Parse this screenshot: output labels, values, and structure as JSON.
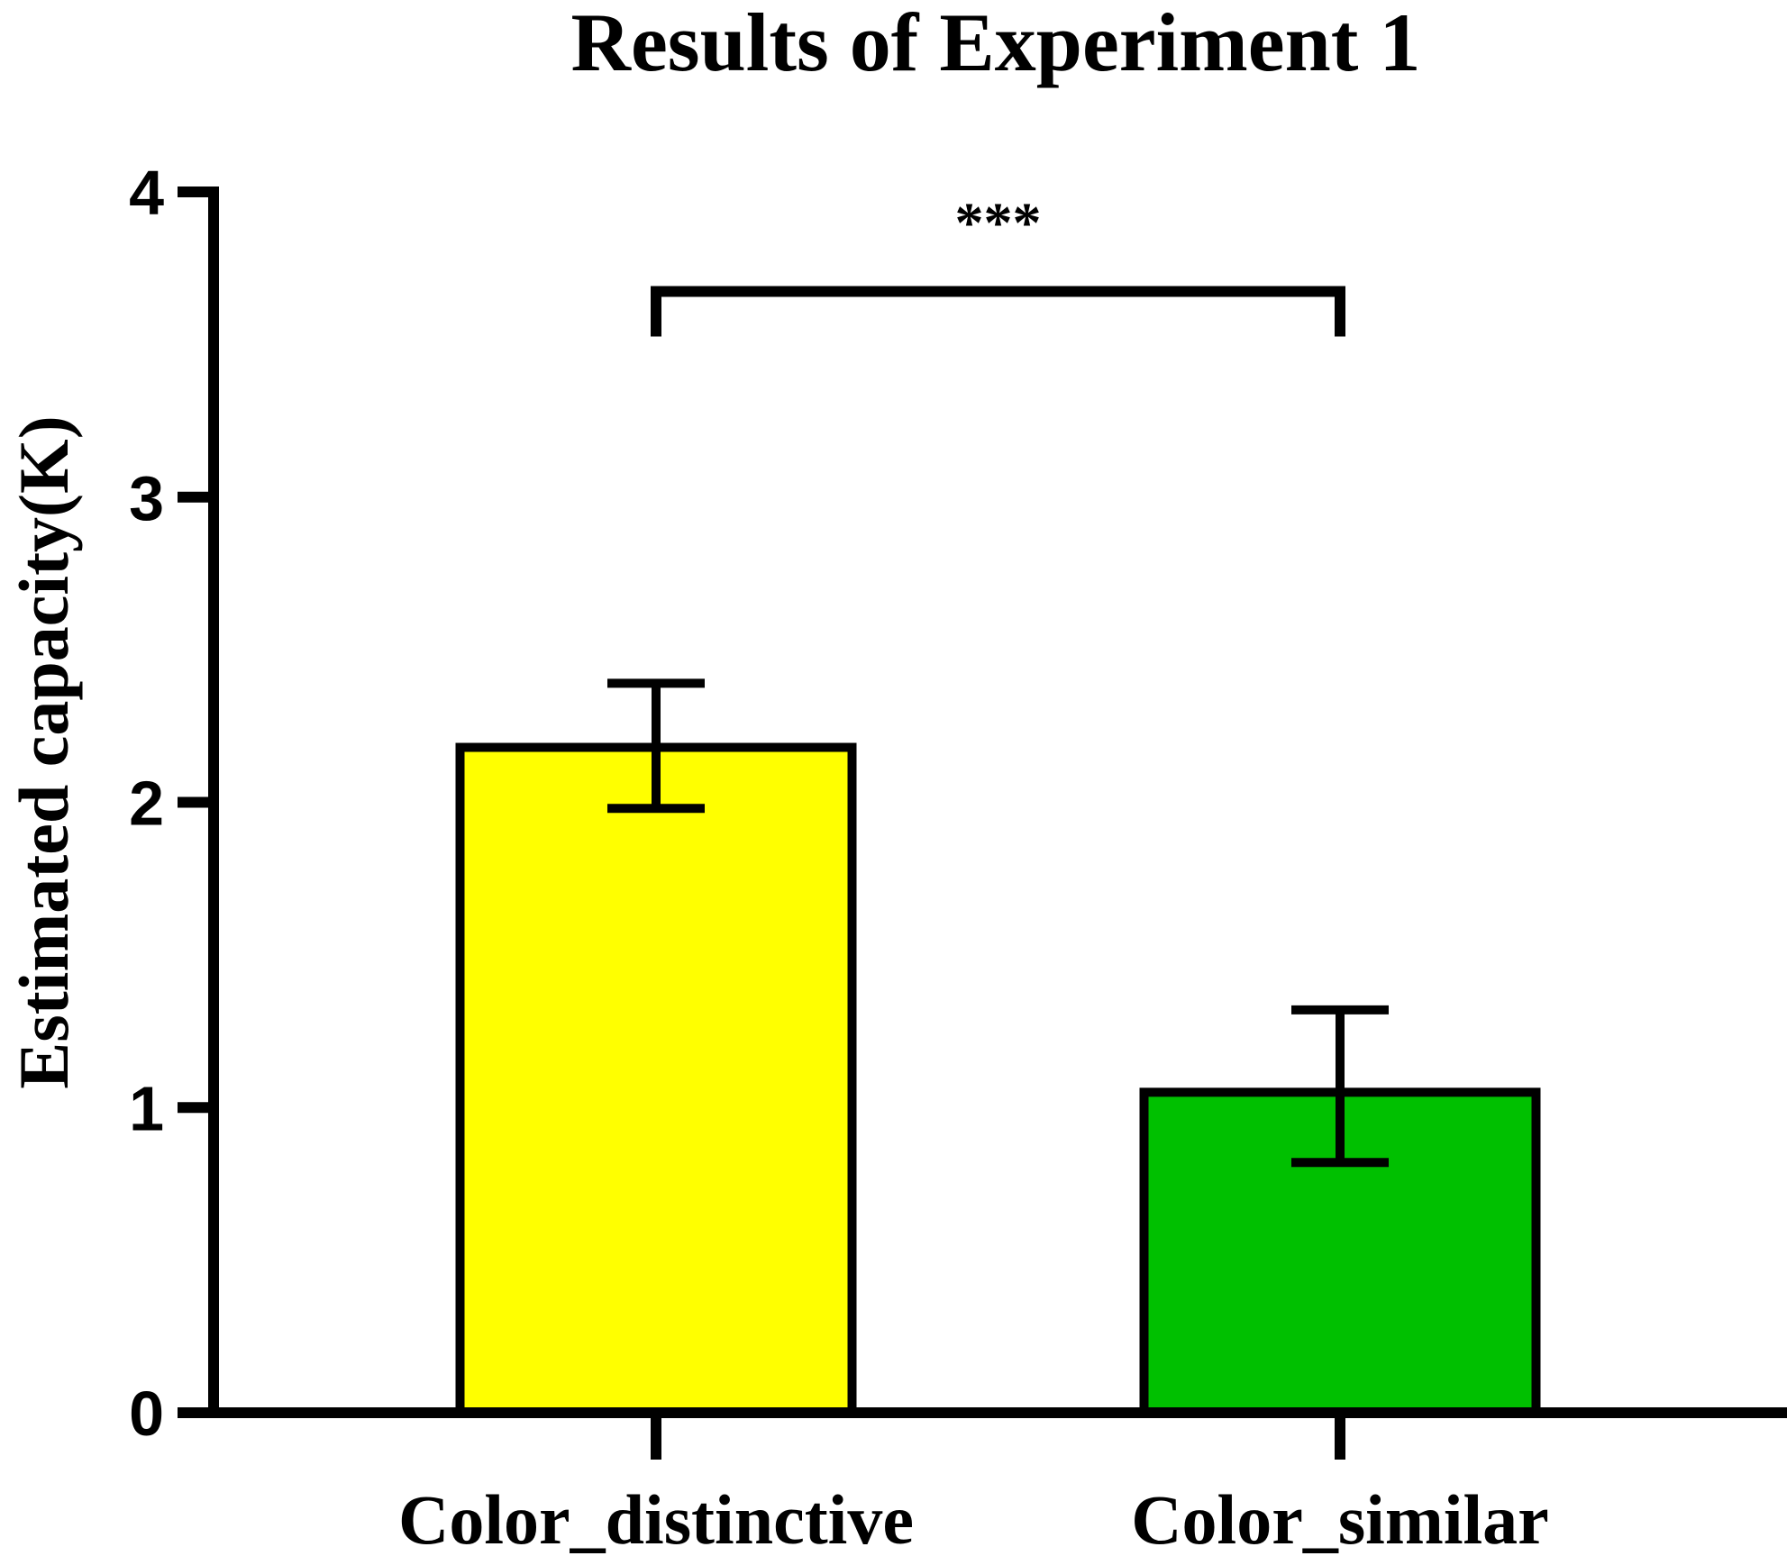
{
  "chart_data": {
    "type": "bar",
    "title": "Results of Experiment 1",
    "xlabel": "",
    "ylabel": "Estimated capacity(K)",
    "ylim": [
      0,
      4
    ],
    "yticks": [
      "0",
      "1",
      "2",
      "3",
      "4"
    ],
    "categories": [
      "Color_distinctive",
      "Color_similar"
    ],
    "values": [
      2.18,
      1.05
    ],
    "error_low": [
      1.98,
      0.82
    ],
    "error_high": [
      2.39,
      1.32
    ],
    "colors": [
      "#ffff00",
      "#00c000"
    ],
    "significance": {
      "from": 0,
      "to": 1,
      "label": "***",
      "y": 3.6
    },
    "grid": false,
    "legend": "none"
  }
}
